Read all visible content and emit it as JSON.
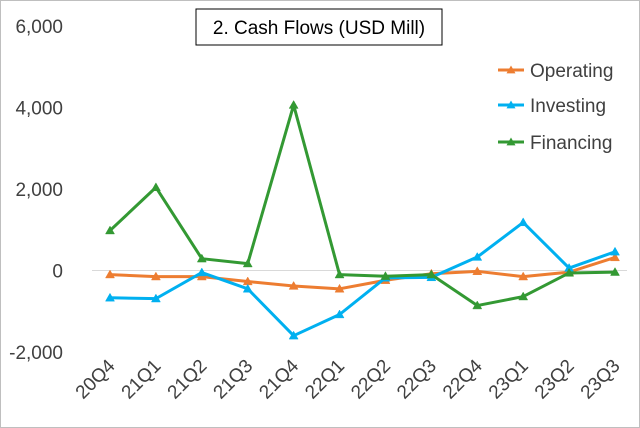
{
  "chart_data": {
    "type": "line",
    "title": "2. Cash Flows (USD Mill)",
    "xlabel": "",
    "ylabel": "",
    "categories": [
      "20Q4",
      "21Q1",
      "21Q2",
      "21Q3",
      "21Q4",
      "22Q1",
      "22Q2",
      "22Q3",
      "22Q4",
      "23Q1",
      "23Q2",
      "23Q3"
    ],
    "ylim": [
      -2000,
      6000
    ],
    "yticks": [
      -2000,
      0,
      2000,
      4000,
      6000
    ],
    "ytick_labels": [
      "-2,000",
      "0",
      "2,000",
      "4,000",
      "6,000"
    ],
    "grid": false,
    "legend_position": "right",
    "series": [
      {
        "name": "Operating",
        "color": "#ED7D31",
        "marker": "triangle",
        "values": [
          -100,
          -150,
          -150,
          -270,
          -380,
          -450,
          -240,
          -80,
          -20,
          -150,
          -40,
          320
        ]
      },
      {
        "name": "Investing",
        "color": "#00B0F0",
        "marker": "triangle",
        "values": [
          -670,
          -690,
          -50,
          -450,
          -1600,
          -1080,
          -180,
          -170,
          330,
          1180,
          60,
          460
        ]
      },
      {
        "name": "Financing",
        "color": "#339933",
        "marker": "triangle",
        "values": [
          980,
          2040,
          290,
          170,
          4060,
          -100,
          -140,
          -100,
          -860,
          -640,
          -60,
          -40
        ]
      }
    ]
  }
}
